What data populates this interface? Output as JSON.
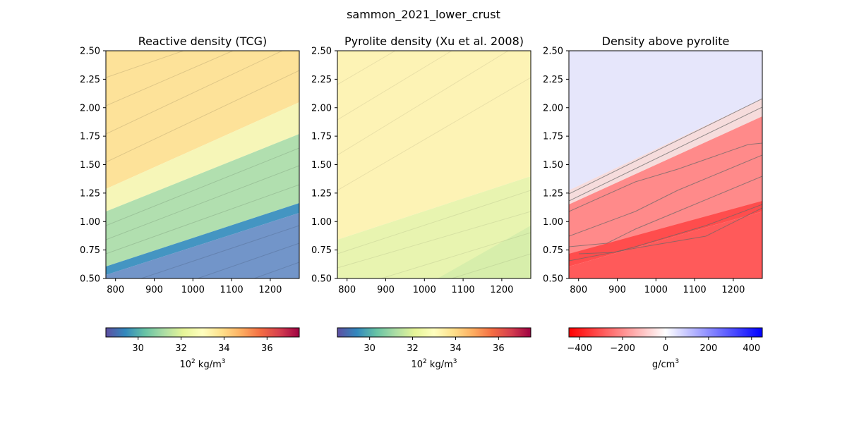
{
  "figure": {
    "title": "sammon_2021_lower_crust"
  },
  "chart_data": [
    {
      "type": "heatmap",
      "title": "Reactive density (TCG)",
      "xlim": [
        775,
        1275
      ],
      "ylim": [
        0.5,
        2.5
      ],
      "xticks": [
        "800",
        "900",
        "1000",
        "1100",
        "1200"
      ],
      "yticks": [
        "0.50",
        "0.75",
        "1.00",
        "1.25",
        "1.50",
        "1.75",
        "2.00",
        "2.25",
        "2.50"
      ],
      "colormap": "Spectral_r",
      "contours": true,
      "colorbar": {
        "range": [
          28.5,
          37.5
        ],
        "ticks": [
          "30",
          "32",
          "34",
          "36"
        ],
        "label_base": "10",
        "label_exp": "2",
        "label_unit": " kg/m",
        "label_unit_exp": "3"
      }
    },
    {
      "type": "heatmap",
      "title": "Pyrolite density (Xu et al. 2008)",
      "xlim": [
        775,
        1275
      ],
      "ylim": [
        0.5,
        2.5
      ],
      "xticks": [
        "800",
        "900",
        "1000",
        "1100",
        "1200"
      ],
      "yticks": [
        "0.50",
        "0.75",
        "1.00",
        "1.25",
        "1.50",
        "1.75",
        "2.00",
        "2.25",
        "2.50"
      ],
      "colormap": "Spectral_r",
      "contours": true,
      "colorbar": {
        "range": [
          28.5,
          37.5
        ],
        "ticks": [
          "30",
          "32",
          "34",
          "36"
        ],
        "label_base": "10",
        "label_exp": "2",
        "label_unit": " kg/m",
        "label_unit_exp": "3"
      }
    },
    {
      "type": "heatmap",
      "title": "Density above pyrolite",
      "xlim": [
        775,
        1275
      ],
      "ylim": [
        0.5,
        2.5
      ],
      "xticks": [
        "800",
        "900",
        "1000",
        "1100",
        "1200"
      ],
      "yticks": [
        "0.50",
        "0.75",
        "1.00",
        "1.25",
        "1.50",
        "1.75",
        "2.00",
        "2.25",
        "2.50"
      ],
      "colormap": "bwr_r",
      "contours": true,
      "colorbar": {
        "range": [
          -450,
          450
        ],
        "ticks": [
          "−400",
          "−200",
          "0",
          "200",
          "400"
        ],
        "label_unit": "g/cm",
        "label_unit_exp": "3"
      }
    }
  ],
  "colors": {
    "spectral": [
      "#5e4fa2",
      "#3288bd",
      "#66c2a5",
      "#abdda4",
      "#e6f598",
      "#ffffbf",
      "#fee08b",
      "#fdae61",
      "#f46d43",
      "#d53e4f",
      "#9e0142"
    ],
    "bwr_r": [
      "#ff0000",
      "#ffffff",
      "#0000ff"
    ]
  }
}
